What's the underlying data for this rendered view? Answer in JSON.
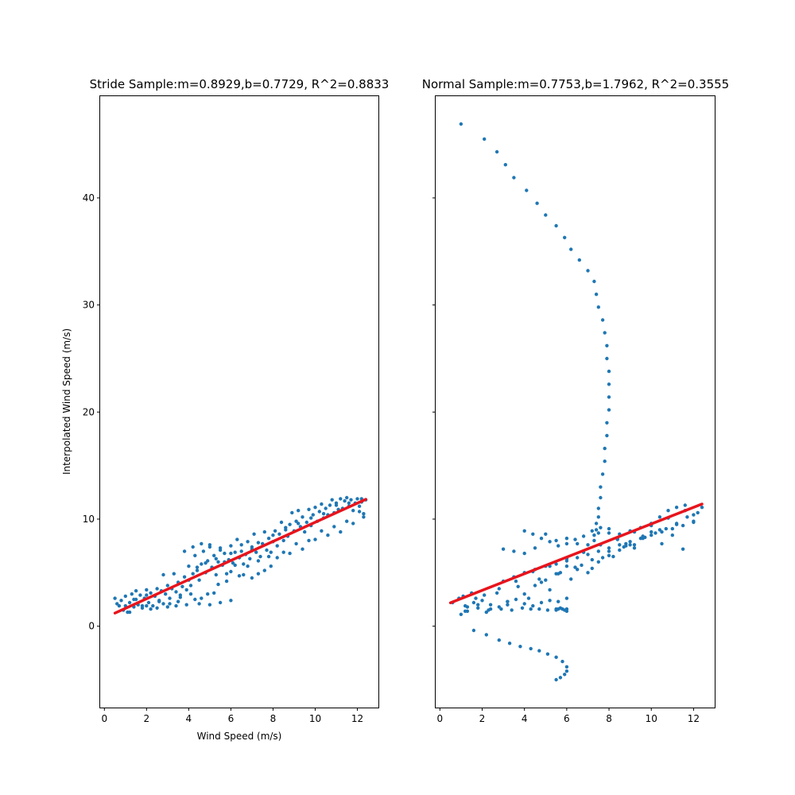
{
  "colors": {
    "points": "#1f77b4",
    "fit_line": "#e8141c",
    "background": "#ffffff",
    "axes": "#000000"
  },
  "chart_data": [
    {
      "type": "scatter",
      "title": "Stride Sample:m=0.8929,b=0.7729, R^2=0.8833",
      "xlabel": "Wind Speed (m/s)",
      "ylabel": "Interpolated Wind Speed (m/s)",
      "xlim": [
        -0.2,
        13.0
      ],
      "ylim": [
        -7.6,
        49.5
      ],
      "xticks": [
        0,
        2,
        4,
        6,
        8,
        10,
        12
      ],
      "yticks": [
        0,
        10,
        20,
        30,
        40
      ],
      "show_y_tick_labels": true,
      "fit": {
        "m": 0.8929,
        "b": 0.7729,
        "x_range": [
          0.5,
          12.4
        ]
      },
      "series": [
        {
          "x": [
            0.5,
            0.6,
            0.7,
            0.8,
            0.9,
            1.0,
            1.0,
            1.1,
            1.2,
            1.3,
            1.4,
            1.5,
            1.5,
            1.6,
            1.7,
            1.8,
            1.9,
            2.0,
            2.1,
            2.2,
            2.3,
            2.4,
            2.5,
            2.6,
            2.7,
            2.8,
            2.9,
            3.0,
            3.1,
            3.2,
            3.3,
            3.4,
            3.5,
            3.6,
            3.7,
            3.8,
            3.9,
            4.0,
            4.0,
            4.1,
            4.2,
            4.3,
            4.4,
            4.5,
            4.6,
            4.7,
            4.8,
            4.9,
            5.0,
            5.1,
            5.2,
            5.3,
            5.4,
            5.5,
            5.6,
            5.7,
            5.8,
            5.9,
            6.0,
            6.1,
            6.2,
            6.3,
            6.4,
            6.5,
            6.6,
            6.7,
            6.8,
            6.9,
            7.0,
            7.1,
            7.2,
            7.3,
            7.4,
            7.5,
            7.6,
            7.7,
            7.8,
            7.9,
            8.0,
            8.1,
            8.2,
            8.3,
            8.4,
            8.5,
            8.6,
            8.7,
            8.8,
            8.9,
            9.0,
            9.1,
            9.2,
            9.3,
            9.4,
            9.5,
            9.6,
            9.7,
            9.8,
            9.9,
            10.0,
            10.1,
            10.2,
            10.3,
            10.4,
            10.5,
            10.6,
            10.7,
            10.8,
            10.9,
            11.0,
            11.1,
            11.2,
            11.3,
            11.4,
            11.5,
            11.6,
            11.7,
            11.8,
            11.9,
            12.0,
            12.1,
            12.2,
            12.3,
            12.4,
            1.2,
            1.8,
            2.2,
            2.8,
            3.5,
            4.1,
            4.6,
            5.2,
            5.8,
            6.4,
            7.0,
            7.6,
            8.2,
            8.8,
            9.4,
            10.0,
            10.6,
            11.2,
            11.8,
            12.3,
            1.4,
            2.0,
            2.6,
            3.1,
            3.6,
            4.3,
            4.9,
            5.4,
            6.0,
            6.6,
            7.3,
            7.9,
            8.5,
            9.1,
            9.7,
            10.3,
            10.9,
            11.5,
            12.1,
            3.8,
            4.2,
            4.6,
            5.0,
            5.5,
            6.0,
            6.5,
            7.0,
            4.4,
            4.8,
            5.3,
            5.7,
            6.2,
            6.8,
            7.3,
            7.8,
            2.0,
            2.5,
            3.0,
            3.4,
            3.9,
            4.5,
            5.0,
            5.5,
            6.0,
            8.0,
            8.6,
            9.2,
            9.8,
            10.4,
            11.0,
            11.6,
            12.2
          ],
          "y": [
            2.6,
            2.1,
            1.9,
            2.4,
            1.5,
            1.9,
            2.8,
            1.3,
            2.2,
            3.0,
            1.8,
            2.5,
            3.3,
            2.0,
            2.9,
            1.7,
            2.6,
            3.4,
            2.2,
            3.1,
            1.9,
            2.8,
            3.5,
            2.4,
            3.3,
            4.8,
            3.0,
            3.8,
            2.6,
            3.5,
            4.9,
            3.2,
            4.1,
            2.9,
            3.7,
            4.6,
            3.4,
            4.3,
            5.6,
            3.8,
            4.9,
            6.6,
            5.2,
            4.3,
            5.8,
            7.0,
            5.0,
            6.1,
            7.4,
            5.5,
            6.6,
            4.8,
            6.0,
            7.1,
            5.7,
            6.8,
            4.9,
            6.2,
            7.5,
            5.9,
            6.9,
            8.1,
            6.4,
            7.6,
            5.8,
            6.7,
            7.9,
            6.3,
            7.4,
            8.6,
            6.9,
            7.8,
            6.5,
            7.7,
            8.8,
            7.1,
            8.2,
            6.9,
            7.9,
            8.9,
            7.5,
            8.6,
            9.7,
            8.0,
            9.0,
            8.4,
            9.5,
            10.6,
            8.9,
            9.8,
            10.8,
            9.3,
            10.2,
            8.8,
            9.7,
            10.9,
            9.4,
            10.4,
            11.1,
            9.8,
            10.7,
            11.4,
            10.1,
            11.0,
            10.4,
            11.3,
            11.8,
            10.6,
            11.5,
            10.9,
            11.9,
            11.0,
            11.7,
            12.0,
            11.2,
            11.8,
            10.8,
            11.5,
            11.9,
            11.2,
            11.6,
            10.5,
            11.8,
            1.3,
            1.9,
            1.6,
            2.1,
            2.3,
            3.0,
            2.6,
            3.1,
            4.2,
            4.7,
            4.5,
            5.2,
            6.4,
            6.8,
            7.2,
            8.1,
            8.5,
            8.8,
            9.6,
            10.2,
            2.5,
            2.9,
            2.3,
            2.1,
            2.7,
            2.5,
            3.0,
            3.9,
            5.1,
            4.8,
            4.9,
            5.6,
            6.9,
            7.7,
            8.0,
            8.9,
            9.3,
            9.8,
            10.7,
            7.0,
            7.4,
            7.7,
            7.6,
            7.3,
            6.8,
            7.0,
            7.2,
            5.5,
            5.9,
            6.3,
            6.0,
            5.7,
            5.6,
            6.1,
            6.5,
            1.9,
            1.7,
            1.8,
            1.9,
            2.0,
            2.1,
            2.0,
            2.2,
            2.4,
            8.5,
            9.2,
            9.6,
            10.1,
            10.5,
            11.3,
            11.5,
            11.9
          ]
        }
      ]
    },
    {
      "type": "scatter",
      "title": "Normal Sample:m=0.7753,b=1.7962, R^2=0.3555",
      "xlabel": "",
      "ylabel": "",
      "xlim": [
        -0.2,
        13.0
      ],
      "ylim": [
        -7.6,
        49.5
      ],
      "xticks": [
        0,
        2,
        4,
        6,
        8,
        10,
        12
      ],
      "yticks": [
        0,
        10,
        20,
        30,
        40
      ],
      "show_y_tick_labels": false,
      "fit": {
        "m": 0.7753,
        "b": 1.7962,
        "x_range": [
          0.5,
          12.4
        ]
      },
      "series": [
        {
          "x": [
            1.0,
            2.1,
            2.7,
            3.1,
            3.5,
            4.1,
            4.6,
            5.0,
            5.5,
            5.9,
            6.2,
            6.6,
            7.0,
            7.3,
            7.4,
            7.5,
            7.7,
            7.8,
            7.9,
            7.9,
            8.0,
            8.0,
            8.0,
            8.0,
            7.9,
            7.9,
            7.8,
            7.8,
            7.7,
            7.6,
            7.6,
            7.5,
            7.5,
            7.4,
            7.4,
            7.3,
            7.3,
            0.6,
            0.9,
            1.2,
            1.5,
            1.8,
            2.1,
            2.4,
            2.8,
            3.2,
            3.6,
            4.0,
            4.4,
            4.8,
            5.2,
            5.6,
            6.0,
            6.4,
            6.8,
            7.2,
            7.6,
            8.0,
            8.4,
            8.8,
            9.2,
            9.6,
            10.0,
            10.4,
            10.8,
            11.2,
            11.6,
            12.0,
            12.4,
            1.0,
            1.3,
            1.7,
            2.2,
            2.7,
            3.2,
            3.7,
            4.2,
            4.7,
            5.2,
            5.7,
            6.2,
            6.7,
            7.2,
            7.7,
            8.2,
            8.7,
            9.2,
            9.7,
            10.2,
            10.7,
            11.2,
            11.7,
            12.2,
            3.0,
            3.5,
            4.0,
            4.5,
            5.0,
            5.5,
            6.0,
            6.5,
            7.0,
            7.5,
            8.0,
            8.5,
            9.0,
            9.5,
            10.0,
            10.5,
            11.0,
            11.5,
            12.0,
            3.0,
            3.5,
            4.0,
            4.5,
            5.0,
            5.5,
            6.0,
            6.5,
            7.0,
            7.5,
            8.0,
            8.5,
            9.0,
            9.5,
            10.0,
            10.5,
            11.0,
            11.5,
            12.0,
            4.0,
            4.4,
            4.8,
            5.2,
            5.6,
            6.0,
            6.4,
            6.8,
            7.2,
            7.6,
            8.0,
            8.4,
            8.8,
            9.2,
            9.6,
            10.0,
            10.4,
            10.8,
            11.2,
            11.6,
            1.2,
            1.6,
            2.0,
            2.4,
            2.8,
            3.2,
            3.6,
            4.0,
            4.4,
            4.8,
            5.2,
            5.6,
            6.0,
            4.5,
            5.0,
            5.5,
            6.0,
            6.5,
            7.0,
            7.5,
            8.0,
            8.5,
            9.0,
            1.1,
            1.3,
            1.8,
            2.3,
            2.9,
            3.4,
            3.9,
            4.3,
            4.7,
            5.1,
            5.5,
            5.8,
            6.0,
            6.0,
            5.9,
            5.7,
            5.6,
            5.5
          ],
          "y": [
            46.9,
            45.5,
            44.3,
            43.1,
            41.9,
            40.7,
            39.5,
            38.4,
            37.4,
            36.3,
            35.2,
            34.2,
            33.2,
            32.2,
            31.0,
            29.8,
            28.6,
            27.4,
            26.2,
            25.0,
            23.8,
            22.6,
            21.4,
            20.2,
            19.0,
            17.8,
            16.6,
            15.4,
            14.2,
            13.0,
            12.0,
            11.0,
            10.2,
            9.6,
            9.0,
            8.5,
            8.0,
            2.2,
            2.6,
            1.4,
            3.1,
            2.0,
            2.9,
            1.6,
            3.5,
            2.3,
            4.2,
            3.0,
            5.1,
            4.1,
            5.6,
            4.9,
            6.3,
            5.5,
            6.9,
            6.2,
            7.6,
            7.0,
            8.2,
            7.7,
            8.8,
            8.4,
            9.4,
            9.0,
            10.1,
            9.6,
            10.8,
            10.4,
            11.1,
            1.1,
            1.8,
            2.6,
            1.3,
            3.1,
            2.0,
            3.7,
            2.6,
            4.4,
            3.4,
            5.0,
            4.4,
            5.7,
            5.4,
            6.4,
            6.5,
            7.4,
            7.6,
            8.3,
            8.7,
            9.1,
            9.5,
            10.2,
            10.6,
            7.2,
            7.0,
            6.8,
            7.3,
            8.6,
            8.0,
            8.2,
            7.7,
            7.6,
            8.7,
            9.1,
            8.6,
            8.9,
            9.2,
            8.8,
            7.7,
            8.5,
            7.2,
            9.8,
            4.2,
            4.6,
            5.0,
            5.3,
            5.6,
            5.8,
            6.1,
            6.4,
            6.7,
            7.0,
            7.3,
            7.6,
            7.9,
            8.2,
            8.5,
            8.8,
            9.1,
            9.4,
            9.7,
            8.9,
            8.6,
            8.2,
            7.9,
            7.5,
            7.7,
            8.1,
            8.4,
            8.9,
            9.2,
            8.7,
            8.1,
            7.5,
            7.3,
            8.2,
            9.6,
            10.2,
            10.8,
            11.1,
            11.3,
            1.9,
            2.2,
            2.4,
            2.0,
            1.8,
            2.3,
            2.5,
            2.1,
            1.9,
            2.2,
            2.4,
            2.3,
            2.6,
            3.8,
            4.3,
            4.9,
            5.6,
            5.3,
            5.0,
            6.0,
            6.6,
            7.1,
            7.6,
            2.8,
            1.4,
            1.7,
            1.5,
            1.6,
            1.5,
            1.7,
            1.6,
            1.6,
            1.5,
            1.6,
            1.6,
            1.4,
            1.6,
            1.5,
            1.7,
            1.6,
            1.5
          ]
        },
        {
          "x": [
            1.6,
            2.2,
            2.8,
            3.3,
            3.8,
            4.3,
            4.7,
            5.1,
            5.5,
            5.8,
            6.0,
            6.0,
            5.9,
            5.7,
            5.5
          ],
          "y": [
            -0.4,
            -0.8,
            -1.3,
            -1.6,
            -1.9,
            -2.1,
            -2.3,
            -2.6,
            -2.9,
            -3.3,
            -3.8,
            -4.2,
            -4.5,
            -4.8,
            -5.0
          ]
        }
      ]
    }
  ]
}
